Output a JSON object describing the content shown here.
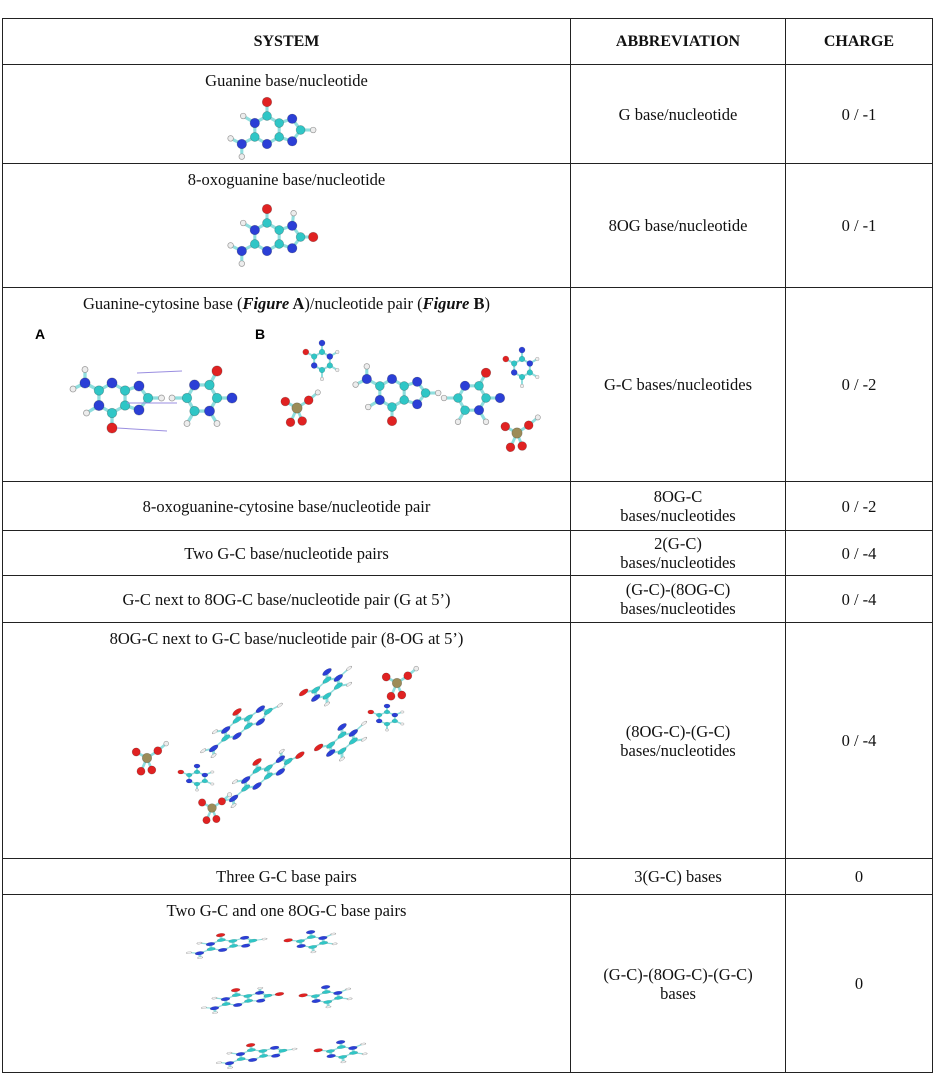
{
  "header": {
    "columns": [
      "SYSTEM",
      "ABBREVIATION",
      "CHARGE"
    ]
  },
  "table": {
    "rows": [
      {
        "system": [
          "Guanine base/nucleotide"
        ],
        "abbreviation": [
          "G base/nucleotide"
        ],
        "charge": "0 / -1"
      },
      {
        "system": [
          "8-oxoguanine base/nucleotide"
        ],
        "abbreviation": [
          "8OG base/nucleotide"
        ],
        "charge": "0 / -1"
      },
      {
        "system": [
          "Guanine-cytosine base (",
          "Figure",
          " A",
          ")/nucleotide pair (",
          "Figure",
          " B",
          ")"
        ],
        "figure_labels": [
          "A",
          "B"
        ],
        "abbreviation": [
          "G-C bases/nucleotides"
        ],
        "charge": "0 / -2"
      },
      {
        "system": [
          "8-oxoguanine-cytosine base/nucleotide pair"
        ],
        "abbreviation": [
          "8OG-C",
          "bases/nucleotides"
        ],
        "charge": "0 / -2"
      },
      {
        "system": [
          "Two G-C base/nucleotide pairs"
        ],
        "abbreviation": [
          "2(G-C)",
          "bases/nucleotides"
        ],
        "charge": "0 / -4"
      },
      {
        "system": [
          "G-C next to 8OG-C base/nucleotide pair (G at 5’)"
        ],
        "abbreviation": [
          "(G-C)-(8OG-C)",
          "bases/nucleotides"
        ],
        "charge": "0 / -4"
      },
      {
        "system": [
          "8OG-C next to G-C base/nucleotide pair (8-OG at 5’)"
        ],
        "abbreviation": [
          "(8OG-C)-(G-C)",
          "bases/nucleotides"
        ],
        "charge": "0 / -4"
      },
      {
        "system": [
          "Three G-C base pairs"
        ],
        "abbreviation": [
          "3(G-C) bases"
        ],
        "charge": "0"
      },
      {
        "system": [
          "Two G-C and one 8OG-C base pairs"
        ],
        "abbreviation": [
          "(G-C)-(8OG-C)-(G-C)",
          "bases"
        ],
        "charge": "0"
      }
    ]
  }
}
